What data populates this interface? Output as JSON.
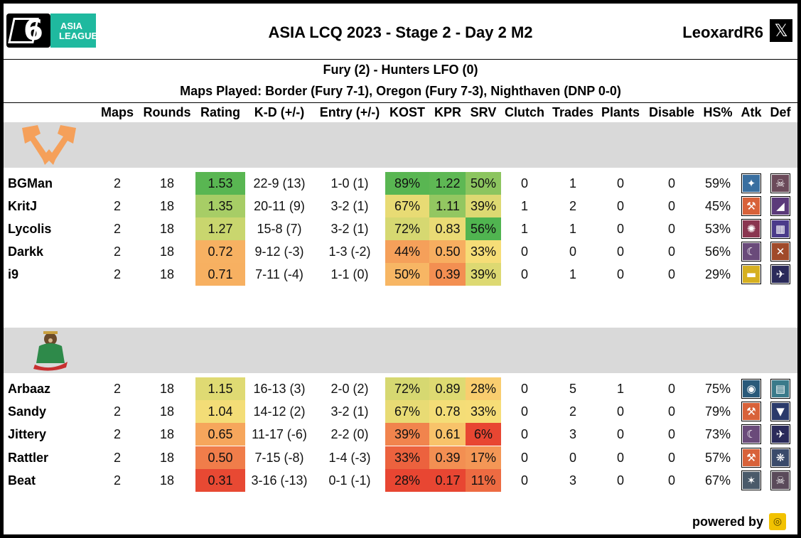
{
  "header": {
    "logo_text_1": "ASIA",
    "logo_text_2": "LEAGUE",
    "title": "ASIA LCQ 2023 - Stage 2 - Day 2 M2",
    "handle": "LeoxardR6",
    "social_icon": "x-logo-icon"
  },
  "match": {
    "result": "Fury (2) - Hunters LFO (0)",
    "maps_played": "Maps Played: Border (Fury 7-1), Oregon (Fury 7-3), Nighthaven (DNP 0-0)"
  },
  "columns": [
    "Maps",
    "Rounds",
    "Rating",
    "K-D (+/-)",
    "Entry (+/-)",
    "KOST",
    "KPR",
    "SRV",
    "Clutch",
    "Trades",
    "Plants",
    "Disable",
    "HS%",
    "Atk",
    "Def"
  ],
  "teams": [
    {
      "logo": "fury-axes-logo",
      "accent": "#f5a05a",
      "players": [
        {
          "name": "BGMan",
          "maps": "2",
          "rounds": "18",
          "rating": "1.53",
          "kd": "22-9 (13)",
          "entry": "1-0 (1)",
          "kost": "89%",
          "kpr": "1.22",
          "srv": "50%",
          "clutch": "0",
          "trades": "1",
          "plants": "0",
          "disable": "0",
          "hs": "59%",
          "atk_icon": "drone-icon",
          "def_icon": "skull-icon",
          "atk_color": "#3a6fa0",
          "def_color": "#6b4a5a",
          "atk_glyph": "✦",
          "def_glyph": "☠"
        },
        {
          "name": "KritJ",
          "maps": "2",
          "rounds": "18",
          "rating": "1.35",
          "kd": "20-11 (9)",
          "entry": "3-2 (1)",
          "kost": "67%",
          "kpr": "1.11",
          "srv": "39%",
          "clutch": "1",
          "trades": "2",
          "plants": "0",
          "disable": "0",
          "hs": "45%",
          "atk_icon": "hammer-icon",
          "def_icon": "blade-icon",
          "atk_color": "#d8623a",
          "def_color": "#5b3a7a",
          "atk_glyph": "⚒",
          "def_glyph": "◢"
        },
        {
          "name": "Lycolis",
          "maps": "2",
          "rounds": "18",
          "rating": "1.27",
          "kd": "15-8 (7)",
          "entry": "3-2 (1)",
          "kost": "72%",
          "kpr": "0.83",
          "srv": "56%",
          "clutch": "1",
          "trades": "1",
          "plants": "0",
          "disable": "0",
          "hs": "53%",
          "atk_icon": "gear-icon",
          "def_icon": "stripes-icon",
          "atk_color": "#8a3550",
          "def_color": "#4a3a8a",
          "atk_glyph": "✺",
          "def_glyph": "▦"
        },
        {
          "name": "Darkk",
          "maps": "2",
          "rounds": "18",
          "rating": "0.72",
          "kd": "9-12 (-3)",
          "entry": "1-3 (-2)",
          "kost": "44%",
          "kpr": "0.50",
          "srv": "33%",
          "clutch": "0",
          "trades": "0",
          "plants": "0",
          "disable": "0",
          "hs": "56%",
          "atk_icon": "claw-icon",
          "def_icon": "cross-icon",
          "atk_color": "#6a4a7a",
          "def_color": "#a04a2a",
          "atk_glyph": "☾",
          "def_glyph": "✕"
        },
        {
          "name": "i9",
          "maps": "2",
          "rounds": "18",
          "rating": "0.71",
          "kd": "7-11 (-4)",
          "entry": "1-1 (0)",
          "kost": "50%",
          "kpr": "0.39",
          "srv": "39%",
          "clutch": "0",
          "trades": "1",
          "plants": "0",
          "disable": "0",
          "hs": "29%",
          "atk_icon": "visor-icon",
          "def_icon": "bird-icon",
          "atk_color": "#d6b020",
          "def_color": "#2a2a5a",
          "atk_glyph": "▬",
          "def_glyph": "✈"
        }
      ]
    },
    {
      "logo": "hunters-monkey-logo",
      "accent": "#3a8a4a",
      "players": [
        {
          "name": "Arbaaz",
          "maps": "2",
          "rounds": "18",
          "rating": "1.15",
          "kd": "16-13 (3)",
          "entry": "2-0 (2)",
          "kost": "72%",
          "kpr": "0.89",
          "srv": "28%",
          "clutch": "0",
          "trades": "5",
          "plants": "1",
          "disable": "0",
          "hs": "75%",
          "atk_icon": "helmet-icon",
          "def_icon": "shield-icon",
          "atk_color": "#2a5a7a",
          "def_color": "#3a7a8a",
          "atk_glyph": "◉",
          "def_glyph": "▤"
        },
        {
          "name": "Sandy",
          "maps": "2",
          "rounds": "18",
          "rating": "1.04",
          "kd": "14-12 (2)",
          "entry": "3-2 (1)",
          "kost": "67%",
          "kpr": "0.78",
          "srv": "33%",
          "clutch": "0",
          "trades": "2",
          "plants": "0",
          "disable": "0",
          "hs": "79%",
          "atk_icon": "hammer-icon",
          "def_icon": "tie-icon",
          "atk_color": "#d8623a",
          "def_color": "#2a3a6a",
          "atk_glyph": "⚒",
          "def_glyph": "▼"
        },
        {
          "name": "Jittery",
          "maps": "2",
          "rounds": "18",
          "rating": "0.65",
          "kd": "11-17 (-6)",
          "entry": "2-2 (0)",
          "kost": "39%",
          "kpr": "0.61",
          "srv": "6%",
          "clutch": "0",
          "trades": "3",
          "plants": "0",
          "disable": "0",
          "hs": "73%",
          "atk_icon": "claw-icon",
          "def_icon": "bird-icon",
          "atk_color": "#6a4a7a",
          "def_color": "#2a2a5a",
          "atk_glyph": "☾",
          "def_glyph": "✈"
        },
        {
          "name": "Rattler",
          "maps": "2",
          "rounds": "18",
          "rating": "0.50",
          "kd": "7-15 (-8)",
          "entry": "1-4 (-3)",
          "kost": "33%",
          "kpr": "0.39",
          "srv": "17%",
          "clutch": "0",
          "trades": "0",
          "plants": "0",
          "disable": "0",
          "hs": "57%",
          "atk_icon": "hammer-icon",
          "def_icon": "wing-icon",
          "atk_color": "#d8623a",
          "def_color": "#3a4a6a",
          "atk_glyph": "⚒",
          "def_glyph": "❋"
        },
        {
          "name": "Beat",
          "maps": "2",
          "rounds": "18",
          "rating": "0.31",
          "kd": "3-16 (-13)",
          "entry": "0-1 (-1)",
          "kost": "28%",
          "kpr": "0.17",
          "srv": "11%",
          "clutch": "0",
          "trades": "3",
          "plants": "0",
          "disable": "0",
          "hs": "67%",
          "atk_icon": "cross-arrows-icon",
          "def_icon": "skull-icon",
          "atk_color": "#4a5a6a",
          "def_color": "#5a4a5a",
          "atk_glyph": "✶",
          "def_glyph": "☠"
        }
      ]
    }
  ],
  "footer": {
    "label": "powered by",
    "icon": "siege-gg-icon"
  }
}
